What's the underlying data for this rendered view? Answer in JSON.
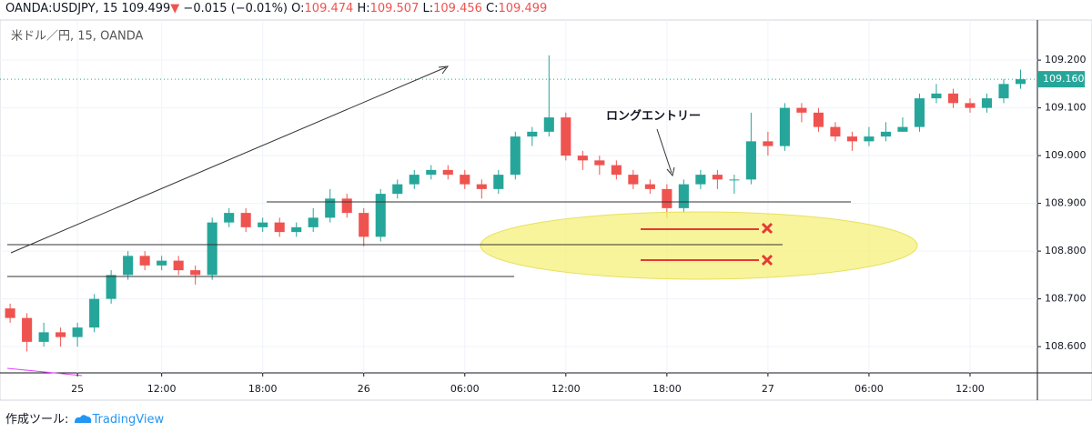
{
  "header": {
    "symbol": "OANDA:USDJPY, 15",
    "price": "109.499",
    "arrow": "▼",
    "change": "−0.015 (−0.01%)",
    "ohlc": [
      {
        "key": "O:",
        "value": "109.474"
      },
      {
        "key": "H:",
        "value": "109.507"
      },
      {
        "key": "L:",
        "value": "109.456"
      },
      {
        "key": "C:",
        "value": "109.499"
      }
    ]
  },
  "chart_data": {
    "type": "candlestick",
    "subtitle": "米ドル／円, 15, OANDA",
    "annotation": "ロングエントリー",
    "up_color": "#26a69a",
    "down_color": "#ef5350",
    "grid": true,
    "x": [
      3,
      4,
      5,
      6,
      7,
      8,
      9,
      10,
      11,
      12,
      13,
      14,
      15,
      16,
      17,
      18,
      19,
      20,
      21,
      22,
      23,
      24,
      25,
      26,
      27,
      28,
      29,
      30,
      31,
      32,
      33,
      34,
      35,
      36,
      37,
      38,
      39,
      40,
      41,
      42,
      43,
      44,
      45,
      46,
      47,
      48,
      49,
      50,
      51,
      52,
      53,
      54,
      55,
      56,
      57,
      58,
      59,
      60,
      61,
      62,
      63
    ],
    "open": [
      108.68,
      108.66,
      108.61,
      108.63,
      108.62,
      108.64,
      108.7,
      108.75,
      108.79,
      108.77,
      108.78,
      108.76,
      108.75,
      108.86,
      108.88,
      108.85,
      108.86,
      108.84,
      108.85,
      108.87,
      108.91,
      108.88,
      108.83,
      108.92,
      108.94,
      108.96,
      108.97,
      108.96,
      108.94,
      108.93,
      108.96,
      109.04,
      109.05,
      109.08,
      109.0,
      108.99,
      108.98,
      108.96,
      108.94,
      108.93,
      108.89,
      108.94,
      108.96,
      108.95,
      108.95,
      109.03,
      109.02,
      109.1,
      109.09,
      109.06,
      109.04,
      109.03,
      109.04,
      109.05,
      109.06,
      109.12,
      109.13,
      109.11,
      109.1,
      109.12,
      109.15
    ],
    "high": [
      108.69,
      108.67,
      108.65,
      108.64,
      108.65,
      108.71,
      108.76,
      108.8,
      108.8,
      108.79,
      108.79,
      108.77,
      108.87,
      108.89,
      108.89,
      108.87,
      108.87,
      108.86,
      108.89,
      108.93,
      108.92,
      108.89,
      108.93,
      108.95,
      108.97,
      108.98,
      108.98,
      108.97,
      108.95,
      108.97,
      109.05,
      109.06,
      109.21,
      109.09,
      109.01,
      109.0,
      108.99,
      108.97,
      108.95,
      108.94,
      108.95,
      108.97,
      108.97,
      108.96,
      109.09,
      109.05,
      109.11,
      109.11,
      109.1,
      109.07,
      109.05,
      109.06,
      109.07,
      109.08,
      109.13,
      109.15,
      109.14,
      109.12,
      109.13,
      109.16,
      109.18
    ],
    "low": [
      108.65,
      108.59,
      108.6,
      108.6,
      108.6,
      108.63,
      108.69,
      108.74,
      108.76,
      108.76,
      108.75,
      108.73,
      108.74,
      108.85,
      108.84,
      108.84,
      108.83,
      108.83,
      108.84,
      108.86,
      108.87,
      108.81,
      108.82,
      108.91,
      108.93,
      108.95,
      108.95,
      108.93,
      108.91,
      108.92,
      108.95,
      109.02,
      109.04,
      108.99,
      108.97,
      108.96,
      108.95,
      108.93,
      108.92,
      108.87,
      108.88,
      108.93,
      108.93,
      108.92,
      108.94,
      109.0,
      109.01,
      109.07,
      109.05,
      109.03,
      109.01,
      109.02,
      109.03,
      109.05,
      109.05,
      109.11,
      109.1,
      109.09,
      109.09,
      109.11,
      109.14
    ],
    "close": [
      108.66,
      108.61,
      108.63,
      108.62,
      108.64,
      108.7,
      108.75,
      108.79,
      108.77,
      108.78,
      108.76,
      108.75,
      108.86,
      108.88,
      108.85,
      108.86,
      108.84,
      108.85,
      108.87,
      108.91,
      108.88,
      108.83,
      108.92,
      108.94,
      108.96,
      108.97,
      108.96,
      108.94,
      108.93,
      108.96,
      109.04,
      109.05,
      109.08,
      109.0,
      108.99,
      108.98,
      108.96,
      108.94,
      108.93,
      108.89,
      108.94,
      108.96,
      108.95,
      108.95,
      109.03,
      109.02,
      109.1,
      109.09,
      109.06,
      109.04,
      109.03,
      109.04,
      109.05,
      109.06,
      109.12,
      109.13,
      109.11,
      109.1,
      109.12,
      109.15,
      109.16
    ],
    "last_price": {
      "value": 109.16,
      "label": "109.160"
    },
    "xlim": [
      2.4,
      64
    ],
    "ylim": [
      108.545,
      109.284
    ],
    "xticks": [
      {
        "value": 7,
        "label": "25"
      },
      {
        "value": 12,
        "label": "12:00"
      },
      {
        "value": 18,
        "label": "18:00"
      },
      {
        "value": 24,
        "label": "26"
      },
      {
        "value": 30,
        "label": "06:00"
      },
      {
        "value": 36,
        "label": "12:00"
      },
      {
        "value": 42,
        "label": "18:00"
      },
      {
        "value": 48,
        "label": "27"
      },
      {
        "value": 54,
        "label": "06:00"
      },
      {
        "value": 60,
        "label": "12:00"
      }
    ],
    "yticks": [
      {
        "value": 108.6,
        "label": "108.600"
      },
      {
        "value": 108.7,
        "label": "108.700"
      },
      {
        "value": 108.8,
        "label": "108.800"
      },
      {
        "value": 108.9,
        "label": "108.900"
      },
      {
        "value": 109.0,
        "label": "109.000"
      },
      {
        "value": 109.1,
        "label": "109.100"
      },
      {
        "value": 109.2,
        "label": "109.200"
      }
    ]
  },
  "footer": {
    "label": "作成ツール:",
    "brand": "TradingView"
  }
}
